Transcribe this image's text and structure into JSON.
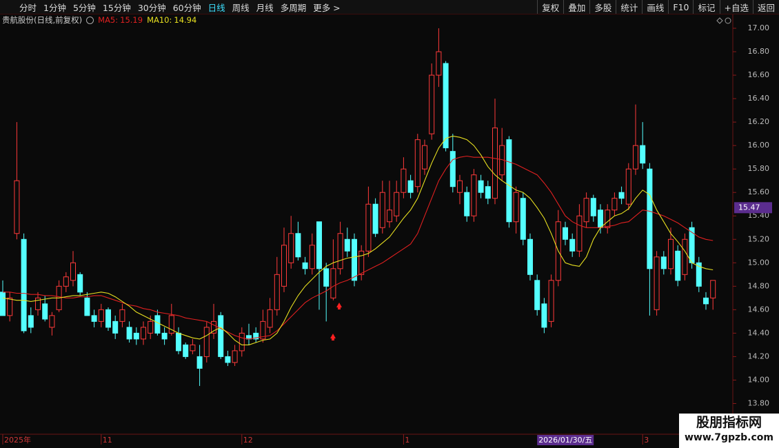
{
  "toolbar": {
    "periods": [
      "分时",
      "1分钟",
      "5分钟",
      "15分钟",
      "30分钟",
      "60分钟",
      "日线",
      "周线",
      "月线",
      "多周期",
      "更多 >"
    ],
    "active": 6,
    "actions": [
      "复权",
      "叠加",
      "多股",
      "统计",
      "画线",
      "F10",
      "标记",
      "+自选",
      "返回"
    ]
  },
  "chart_data": {
    "type": "candlestick",
    "title": "贵航股份(日线,前复权)",
    "categories": [
      "2025年",
      null,
      null,
      null,
      null,
      null,
      null,
      null,
      null,
      null,
      null,
      null,
      null,
      null,
      "11",
      null,
      null,
      null,
      null,
      null,
      null,
      null,
      null,
      null,
      null,
      null,
      null,
      null,
      null,
      null,
      null,
      null,
      null,
      null,
      "12",
      null,
      null,
      null,
      null,
      null,
      null,
      null,
      null,
      null,
      null,
      null,
      null,
      null,
      null,
      null,
      null,
      null,
      null,
      null,
      null,
      null,
      null,
      "1",
      null,
      null,
      null,
      null,
      null,
      null,
      null,
      null,
      null,
      null,
      null,
      null,
      null,
      null,
      null,
      null,
      null,
      null,
      "2026/01/30/五",
      null,
      null,
      null,
      null,
      null,
      null,
      null,
      null,
      null,
      null,
      null,
      null,
      null,
      null,
      "3",
      null,
      null,
      null,
      null,
      null,
      null,
      null,
      null,
      null,
      null
    ],
    "open": [
      14.75,
      14.55,
      15.25,
      15.2,
      14.55,
      14.6,
      14.65,
      14.45,
      14.6,
      14.8,
      14.85,
      14.9,
      14.7,
      14.55,
      14.5,
      14.6,
      14.5,
      14.5,
      14.45,
      14.4,
      14.35,
      14.4,
      14.55,
      14.4,
      14.4,
      14.4,
      14.3,
      14.25,
      14.2,
      14.2,
      14.4,
      14.55,
      14.2,
      14.15,
      14.25,
      14.38,
      14.4,
      14.35,
      14.45,
      14.6,
      14.8,
      15.0,
      15.25,
      15.0,
      14.95,
      15.35,
      14.95,
      14.7,
      14.95,
      15.2,
      15.2,
      14.9,
      15.1,
      15.5,
      15.3,
      15.35,
      15.4,
      15.6,
      15.7,
      15.65,
      15.8,
      16.1,
      16.6,
      16.7,
      15.95,
      15.6,
      15.6,
      15.4,
      15.7,
      15.65,
      15.55,
      15.75,
      16.05,
      15.35,
      15.55,
      15.2,
      14.85,
      14.65,
      14.5,
      14.85,
      15.3,
      15.2,
      15.1,
      15.35,
      15.55,
      15.45,
      15.3,
      15.45,
      15.6,
      15.5,
      15.8,
      16.0,
      15.8,
      14.6,
      15.05,
      14.95,
      15.1,
      14.9,
      15.3,
      15.0,
      14.7,
      14.7
    ],
    "high": [
      14.85,
      14.75,
      16.2,
      15.25,
      14.62,
      14.75,
      14.72,
      14.58,
      14.85,
      14.92,
      15.1,
      14.92,
      14.75,
      14.6,
      14.65,
      14.62,
      14.55,
      14.65,
      14.5,
      14.45,
      14.5,
      14.55,
      14.6,
      14.45,
      14.65,
      14.45,
      14.32,
      14.35,
      14.3,
      14.5,
      14.65,
      14.58,
      14.25,
      14.3,
      14.45,
      14.48,
      14.45,
      14.6,
      14.7,
      15.05,
      15.3,
      15.4,
      15.35,
      15.05,
      15.25,
      15.35,
      15.0,
      15.2,
      15.35,
      15.3,
      15.25,
      15.15,
      15.65,
      15.55,
      15.7,
      15.7,
      15.7,
      15.9,
      15.75,
      16.1,
      16.05,
      16.7,
      17.0,
      16.72,
      16.1,
      15.75,
      15.65,
      15.8,
      15.75,
      15.7,
      16.4,
      16.15,
      16.08,
      15.65,
      15.6,
      15.25,
      14.9,
      14.7,
      14.9,
      15.45,
      15.35,
      15.25,
      15.5,
      15.6,
      15.58,
      15.5,
      15.5,
      15.6,
      15.65,
      15.85,
      16.35,
      16.2,
      15.85,
      15.1,
      15.1,
      15.3,
      15.15,
      15.25,
      15.35,
      15.05,
      14.75,
      14.85
    ],
    "low": [
      14.55,
      14.5,
      15.2,
      14.4,
      14.4,
      14.55,
      14.5,
      14.38,
      14.58,
      14.75,
      14.8,
      14.72,
      14.55,
      14.45,
      14.45,
      14.42,
      14.35,
      14.45,
      14.32,
      14.3,
      14.3,
      14.35,
      14.38,
      14.3,
      14.38,
      14.22,
      14.18,
      14.22,
      13.95,
      14.15,
      14.35,
      14.18,
      14.12,
      14.12,
      14.2,
      14.3,
      14.32,
      14.32,
      14.4,
      14.55,
      14.75,
      14.95,
      15.02,
      14.9,
      14.9,
      14.6,
      14.5,
      14.68,
      14.9,
      15.05,
      14.8,
      14.85,
      15.05,
      15.22,
      15.25,
      15.3,
      15.35,
      15.55,
      15.55,
      15.6,
      15.75,
      16.05,
      16.5,
      15.95,
      15.6,
      15.5,
      15.35,
      15.35,
      15.55,
      15.5,
      15.5,
      15.7,
      15.3,
      15.25,
      15.15,
      14.85,
      14.55,
      14.4,
      14.45,
      14.8,
      15.15,
      15.05,
      15.05,
      15.3,
      15.35,
      15.25,
      15.25,
      15.4,
      15.5,
      15.45,
      15.75,
      15.8,
      14.55,
      14.55,
      14.9,
      14.9,
      14.8,
      14.85,
      14.95,
      14.75,
      14.6,
      14.6
    ],
    "close": [
      14.55,
      14.7,
      15.7,
      14.42,
      14.45,
      14.7,
      14.52,
      14.55,
      14.8,
      14.88,
      15.0,
      14.75,
      14.55,
      14.5,
      14.6,
      14.45,
      14.4,
      14.6,
      14.35,
      14.35,
      14.45,
      14.5,
      14.4,
      14.35,
      14.55,
      14.25,
      14.2,
      14.3,
      14.1,
      14.45,
      14.5,
      14.2,
      14.15,
      14.25,
      14.4,
      14.35,
      14.35,
      14.5,
      14.6,
      14.9,
      15.15,
      15.25,
      15.05,
      14.95,
      15.15,
      14.95,
      14.8,
      14.95,
      15.25,
      15.1,
      14.85,
      15.1,
      15.5,
      15.25,
      15.6,
      15.45,
      15.6,
      15.8,
      15.6,
      16.05,
      16.0,
      16.6,
      16.8,
      15.98,
      15.65,
      15.7,
      15.4,
      15.75,
      15.6,
      15.55,
      16.15,
      16.0,
      15.35,
      15.6,
      15.2,
      14.9,
      14.6,
      14.45,
      14.85,
      15.35,
      15.2,
      15.1,
      15.4,
      15.55,
      15.4,
      15.3,
      15.45,
      15.55,
      15.55,
      15.8,
      16.0,
      15.85,
      14.95,
      15.05,
      14.95,
      15.2,
      14.85,
      15.2,
      15.0,
      14.8,
      14.65,
      14.85
    ],
    "up_color": "#ff3a3a",
    "down_color": "#54ffff",
    "series": [
      {
        "name": "MA5",
        "color": "#e02020",
        "values": [
          14.75,
          14.75,
          14.74,
          14.74,
          14.73,
          14.73,
          14.72,
          14.72,
          14.71,
          14.7,
          14.7,
          14.71,
          14.71,
          14.72,
          14.72,
          14.7,
          14.68,
          14.66,
          14.64,
          14.63,
          14.61,
          14.6,
          14.58,
          14.57,
          14.56,
          14.55,
          14.53,
          14.52,
          14.51,
          14.5,
          14.47,
          14.44,
          14.41,
          14.38,
          14.36,
          14.35,
          14.36,
          14.37,
          14.38,
          14.42,
          14.48,
          14.54,
          14.6,
          14.66,
          14.7,
          14.73,
          14.76,
          14.8,
          14.83,
          14.85,
          14.88,
          14.91,
          14.94,
          14.97,
          15.0,
          15.04,
          15.08,
          15.12,
          15.16,
          15.25,
          15.4,
          15.55,
          15.7,
          15.8,
          15.88,
          15.9,
          15.91,
          15.9,
          15.9,
          15.9,
          15.89,
          15.88,
          15.86,
          15.84,
          15.81,
          15.78,
          15.75,
          15.68,
          15.6,
          15.5,
          15.4,
          15.35,
          15.32,
          15.3,
          15.3,
          15.3,
          15.31,
          15.32,
          15.34,
          15.35,
          15.4,
          15.45,
          15.44,
          15.42,
          15.4,
          15.37,
          15.34,
          15.3,
          15.26,
          15.22,
          15.2,
          15.19
        ]
      },
      {
        "name": "MA10",
        "color": "#e8e020",
        "values": [
          14.7,
          14.69,
          14.68,
          14.68,
          14.67,
          14.68,
          14.69,
          14.7,
          14.7,
          14.71,
          14.72,
          14.72,
          14.73,
          14.74,
          14.75,
          14.74,
          14.71,
          14.67,
          14.63,
          14.58,
          14.55,
          14.52,
          14.49,
          14.46,
          14.43,
          14.4,
          14.38,
          14.36,
          14.35,
          14.38,
          14.42,
          14.45,
          14.4,
          14.34,
          14.3,
          14.3,
          14.32,
          14.34,
          14.35,
          14.4,
          14.5,
          14.62,
          14.72,
          14.8,
          14.86,
          14.92,
          14.97,
          15.0,
          15.02,
          15.04,
          15.05,
          15.06,
          15.08,
          15.12,
          15.17,
          15.22,
          15.3,
          15.38,
          15.45,
          15.55,
          15.7,
          15.85,
          15.98,
          16.06,
          16.08,
          16.07,
          16.05,
          16.0,
          15.92,
          15.82,
          15.75,
          15.7,
          15.66,
          15.62,
          15.6,
          15.55,
          15.47,
          15.38,
          15.25,
          15.1,
          15.0,
          14.98,
          14.97,
          15.05,
          15.2,
          15.3,
          15.35,
          15.4,
          15.42,
          15.46,
          15.55,
          15.62,
          15.58,
          15.45,
          15.35,
          15.25,
          15.18,
          15.1,
          15.0,
          14.97,
          14.95,
          14.94
        ]
      }
    ],
    "ylim": [
      13.55,
      17.1
    ],
    "yticks": [
      {
        "value": 13.8,
        "label": "13.80"
      },
      {
        "value": 14,
        "label": "14.00"
      },
      {
        "value": 14.2,
        "label": "14.20"
      },
      {
        "value": 14.4,
        "label": "14.40"
      },
      {
        "value": 14.6,
        "label": "14.60"
      },
      {
        "value": 14.8,
        "label": "14.80"
      },
      {
        "value": 15,
        "label": "15.00"
      },
      {
        "value": 15.2,
        "label": "15.20"
      },
      {
        "value": 15.4,
        "label": "15.40"
      },
      {
        "value": 15.6,
        "label": "15.60"
      },
      {
        "value": 15.8,
        "label": "15.80"
      },
      {
        "value": 16,
        "label": "16.00"
      },
      {
        "value": 16.2,
        "label": "16.20"
      },
      {
        "value": 16.4,
        "label": "16.40"
      },
      {
        "value": 16.6,
        "label": "16.60"
      },
      {
        "value": 16.8,
        "label": "16.80"
      },
      {
        "value": 17,
        "label": "17.00"
      }
    ],
    "crosshair": {
      "category": 76,
      "price": 15.47
    }
  },
  "watermark": {
    "title": "股朋指标网",
    "url": "www.7gpzb.com"
  }
}
